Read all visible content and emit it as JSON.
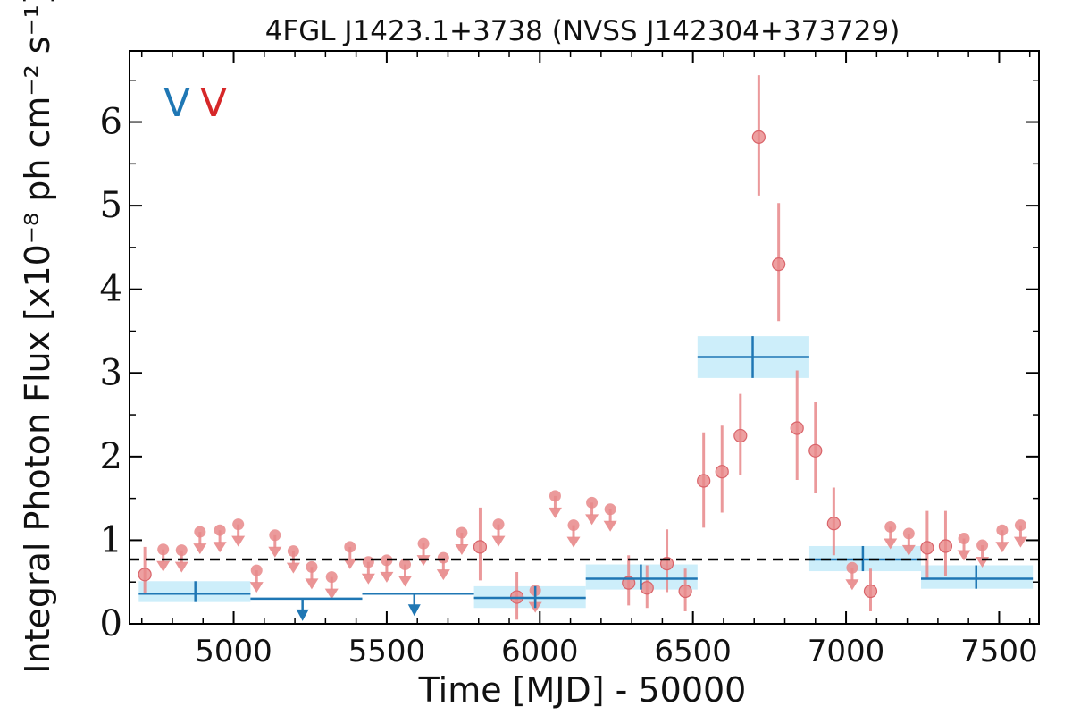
{
  "chart_data": {
    "type": "scatter",
    "title": "4FGL J1423.1+3738 (NVSS J142304+373729)",
    "xlabel": "Time [MJD] - 50000",
    "ylabel": "Integral Photon Flux [x10⁻⁸ ph cm⁻² s⁻¹]",
    "xlim": [
      4660,
      7630
    ],
    "ylim": [
      0,
      6.85
    ],
    "x_ticks": [
      5000,
      5500,
      6000,
      6500,
      7000,
      7500
    ],
    "y_ticks": [
      0,
      1,
      2,
      3,
      4,
      5,
      6
    ],
    "mean_level": 0.77,
    "legend": {
      "placement": "top-left",
      "entries": [
        {
          "label": "V",
          "color": "#1f77b4"
        },
        {
          "label": "V",
          "color": "#d62728"
        }
      ]
    },
    "colors": {
      "long_bins": "#1f77b4",
      "short_bins": "#e8888a",
      "long_band": "#cdeefa"
    },
    "series": [
      {
        "id": "long-bins",
        "bins": [
          {
            "x0": 4690,
            "x1": 5055,
            "x": 4875,
            "y": 0.36,
            "ylo": 0.26,
            "yhi": 0.51,
            "ul": false
          },
          {
            "x0": 5055,
            "x1": 5420,
            "x": 5225,
            "y": 0.3,
            "ul": true
          },
          {
            "x0": 5420,
            "x1": 5785,
            "x": 5590,
            "y": 0.36,
            "ul": true
          },
          {
            "x0": 5785,
            "x1": 6150,
            "x": 5985,
            "y": 0.31,
            "ylo": 0.19,
            "yhi": 0.45,
            "ul": false
          },
          {
            "x0": 6150,
            "x1": 6515,
            "x": 6330,
            "y": 0.54,
            "ylo": 0.41,
            "yhi": 0.71,
            "ul": false
          },
          {
            "x0": 6515,
            "x1": 6880,
            "x": 6695,
            "y": 3.19,
            "ylo": 2.94,
            "yhi": 3.44,
            "ul": false
          },
          {
            "x0": 6880,
            "x1": 7245,
            "x": 7055,
            "y": 0.77,
            "ylo": 0.63,
            "yhi": 0.93,
            "ul": false
          },
          {
            "x0": 7245,
            "x1": 7610,
            "x": 7425,
            "y": 0.54,
            "ylo": 0.42,
            "yhi": 0.7,
            "ul": false
          }
        ]
      },
      {
        "id": "short-bins",
        "points": [
          {
            "x": 4710,
            "y": 0.59,
            "ylo": 0.36,
            "yhi": 0.92,
            "ul": false
          },
          {
            "x": 4770,
            "y": 0.89,
            "ul": true
          },
          {
            "x": 4830,
            "y": 0.88,
            "ul": true
          },
          {
            "x": 4890,
            "y": 1.1,
            "ul": true
          },
          {
            "x": 4955,
            "y": 1.12,
            "ul": true
          },
          {
            "x": 5015,
            "y": 1.19,
            "ul": true
          },
          {
            "x": 5075,
            "y": 0.64,
            "ul": true
          },
          {
            "x": 5135,
            "y": 1.06,
            "ul": true
          },
          {
            "x": 5195,
            "y": 0.87,
            "ul": true
          },
          {
            "x": 5255,
            "y": 0.68,
            "ul": true
          },
          {
            "x": 5320,
            "y": 0.56,
            "ul": true
          },
          {
            "x": 5380,
            "y": 0.92,
            "ul": true
          },
          {
            "x": 5440,
            "y": 0.74,
            "ul": true
          },
          {
            "x": 5500,
            "y": 0.76,
            "ul": true
          },
          {
            "x": 5560,
            "y": 0.71,
            "ul": true
          },
          {
            "x": 5620,
            "y": 0.96,
            "ul": true
          },
          {
            "x": 5685,
            "y": 0.79,
            "ul": true
          },
          {
            "x": 5745,
            "y": 1.09,
            "ul": true
          },
          {
            "x": 5805,
            "y": 0.92,
            "ylo": 0.52,
            "yhi": 1.39,
            "ul": false
          },
          {
            "x": 5865,
            "y": 1.19,
            "ul": true
          },
          {
            "x": 5925,
            "y": 0.32,
            "ylo": 0.05,
            "yhi": 0.62,
            "ul": false
          },
          {
            "x": 5985,
            "y": 0.4,
            "ul": true
          },
          {
            "x": 6050,
            "y": 1.53,
            "ul": true
          },
          {
            "x": 6110,
            "y": 1.18,
            "ul": true
          },
          {
            "x": 6170,
            "y": 1.45,
            "ul": true
          },
          {
            "x": 6230,
            "y": 1.37,
            "ul": true
          },
          {
            "x": 6290,
            "y": 0.49,
            "ylo": 0.22,
            "yhi": 0.82,
            "ul": false
          },
          {
            "x": 6350,
            "y": 0.43,
            "ylo": 0.19,
            "yhi": 0.7,
            "ul": false
          },
          {
            "x": 6415,
            "y": 0.72,
            "ylo": 0.38,
            "yhi": 1.13,
            "ul": false
          },
          {
            "x": 6475,
            "y": 0.39,
            "ylo": 0.15,
            "yhi": 0.66,
            "ul": false
          },
          {
            "x": 6535,
            "y": 1.71,
            "ylo": 1.15,
            "yhi": 2.29,
            "ul": false
          },
          {
            "x": 6595,
            "y": 1.82,
            "ylo": 1.33,
            "yhi": 2.37,
            "ul": false
          },
          {
            "x": 6655,
            "y": 2.25,
            "ylo": 1.78,
            "yhi": 2.75,
            "ul": false
          },
          {
            "x": 6715,
            "y": 5.82,
            "ylo": 5.12,
            "yhi": 6.56,
            "ul": false
          },
          {
            "x": 6780,
            "y": 4.3,
            "ylo": 3.62,
            "yhi": 5.03,
            "ul": false
          },
          {
            "x": 6840,
            "y": 2.34,
            "ylo": 1.72,
            "yhi": 3.03,
            "ul": false
          },
          {
            "x": 6900,
            "y": 2.07,
            "ylo": 1.56,
            "yhi": 2.65,
            "ul": false
          },
          {
            "x": 6960,
            "y": 1.2,
            "ylo": 0.82,
            "yhi": 1.63,
            "ul": false
          },
          {
            "x": 7020,
            "y": 0.67,
            "ul": true
          },
          {
            "x": 7080,
            "y": 0.39,
            "ylo": 0.15,
            "yhi": 0.66,
            "ul": false
          },
          {
            "x": 7145,
            "y": 1.16,
            "ul": true
          },
          {
            "x": 7205,
            "y": 1.08,
            "ul": true
          },
          {
            "x": 7265,
            "y": 0.91,
            "ylo": 0.55,
            "yhi": 1.35,
            "ul": false
          },
          {
            "x": 7325,
            "y": 0.93,
            "ylo": 0.57,
            "yhi": 1.35,
            "ul": false
          },
          {
            "x": 7385,
            "y": 1.02,
            "ul": true
          },
          {
            "x": 7445,
            "y": 0.94,
            "ul": true
          },
          {
            "x": 7510,
            "y": 1.12,
            "ul": true
          },
          {
            "x": 7570,
            "y": 1.18,
            "ul": true
          }
        ]
      }
    ]
  }
}
